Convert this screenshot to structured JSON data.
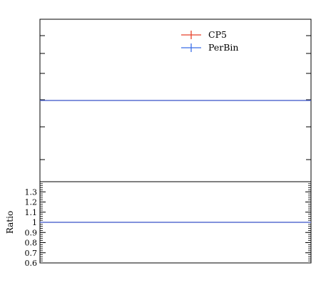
{
  "chart_data": [
    {
      "type": "line",
      "panel": "main",
      "title": "",
      "xlabel": "",
      "ylabel": "",
      "ylim": [
        0,
        2
      ],
      "y_log": false,
      "grid": false,
      "tick_labels": "none",
      "legend": {
        "placement": "top-right",
        "entries": [
          "CP5",
          "PerBin"
        ]
      },
      "series": [
        {
          "name": "CP5",
          "color": "#e8412a",
          "values": [
            1.0,
            1.0
          ]
        },
        {
          "name": "PerBin",
          "color": "#3b6ee8",
          "values": [
            1.0,
            1.0
          ]
        }
      ],
      "x": [
        0,
        1
      ]
    },
    {
      "type": "line",
      "panel": "ratio",
      "title": "",
      "xlabel": "",
      "ylabel": "Ratio",
      "ylim": [
        0.6,
        1.4
      ],
      "grid": false,
      "y_ticks": [
        0.6,
        0.7,
        0.8,
        0.9,
        1,
        1.1,
        1.2,
        1.3
      ],
      "y_tick_labels": [
        "0.6",
        "0.7",
        "0.8",
        "0.9",
        "1",
        "1.1",
        "1.2",
        "1.3"
      ],
      "series": [
        {
          "name": "CP5",
          "color": "#e8412a",
          "values": [
            1.0,
            1.0
          ]
        },
        {
          "name": "PerBin",
          "color": "#3b6ee8",
          "values": [
            1.0,
            1.0
          ]
        }
      ],
      "x": [
        0,
        1
      ]
    }
  ]
}
